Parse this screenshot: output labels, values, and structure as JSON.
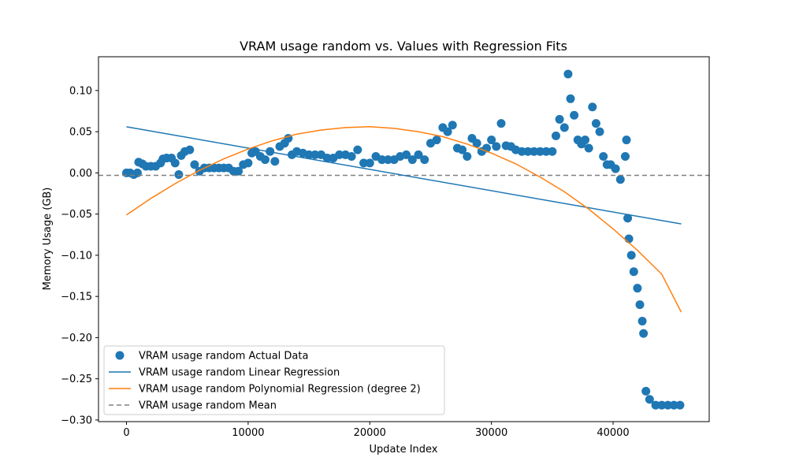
{
  "chart_data": {
    "type": "scatter",
    "title": "VRAM usage random vs. Values with Regression Fits",
    "xlabel": "Update Index",
    "ylabel": "Memory Usage (GB)",
    "xlim": [
      -2300,
      47900
    ],
    "ylim": [
      -0.302,
      0.141
    ],
    "xticks": [
      0,
      10000,
      20000,
      30000,
      40000
    ],
    "xtick_labels": [
      "0",
      "10000",
      "20000",
      "30000",
      "40000"
    ],
    "yticks": [
      0.1,
      0.05,
      0.0,
      -0.05,
      -0.1,
      -0.15,
      -0.2,
      -0.25,
      -0.3
    ],
    "ytick_labels": [
      "0.10",
      "0.05",
      "0.00",
      "−0.05",
      "−0.10",
      "−0.15",
      "−0.20",
      "−0.25",
      "−0.30"
    ],
    "grid": false,
    "legend_position": "lower-left",
    "colors": {
      "data": "#1f77b4",
      "linear": "#1f77b4",
      "poly": "#ff7f0e",
      "mean": "#808080"
    },
    "series": [
      {
        "name": "VRAM usage random Actual Data",
        "kind": "scatter",
        "points": [
          [
            0,
            0.0
          ],
          [
            300,
            0.0
          ],
          [
            600,
            -0.002
          ],
          [
            900,
            0.0
          ],
          [
            1000,
            0.013
          ],
          [
            1300,
            0.011
          ],
          [
            1600,
            0.008
          ],
          [
            2000,
            0.008
          ],
          [
            2400,
            0.008
          ],
          [
            2800,
            0.012
          ],
          [
            3000,
            0.017
          ],
          [
            3300,
            0.018
          ],
          [
            3700,
            0.018
          ],
          [
            4000,
            0.012
          ],
          [
            4300,
            -0.002
          ],
          [
            4500,
            0.021
          ],
          [
            4800,
            0.026
          ],
          [
            5200,
            0.028
          ],
          [
            5600,
            0.01
          ],
          [
            6000,
            0.002
          ],
          [
            6400,
            0.006
          ],
          [
            6800,
            0.006
          ],
          [
            7200,
            0.006
          ],
          [
            7600,
            0.006
          ],
          [
            8000,
            0.006
          ],
          [
            8400,
            0.006
          ],
          [
            8800,
            0.002
          ],
          [
            9200,
            0.002
          ],
          [
            9600,
            0.01
          ],
          [
            10000,
            0.012
          ],
          [
            10300,
            0.024
          ],
          [
            10600,
            0.026
          ],
          [
            11000,
            0.02
          ],
          [
            11400,
            0.016
          ],
          [
            11800,
            0.026
          ],
          [
            12200,
            0.014
          ],
          [
            12600,
            0.032
          ],
          [
            13000,
            0.036
          ],
          [
            13300,
            0.042
          ],
          [
            13600,
            0.022
          ],
          [
            14000,
            0.026
          ],
          [
            14500,
            0.024
          ],
          [
            15000,
            0.022
          ],
          [
            15500,
            0.022
          ],
          [
            16000,
            0.022
          ],
          [
            16500,
            0.018
          ],
          [
            17000,
            0.018
          ],
          [
            17500,
            0.022
          ],
          [
            18000,
            0.022
          ],
          [
            18500,
            0.02
          ],
          [
            19000,
            0.028
          ],
          [
            19500,
            0.012
          ],
          [
            20000,
            0.012
          ],
          [
            20500,
            0.02
          ],
          [
            21000,
            0.016
          ],
          [
            21500,
            0.016
          ],
          [
            22000,
            0.016
          ],
          [
            22500,
            0.02
          ],
          [
            23000,
            0.022
          ],
          [
            23500,
            0.016
          ],
          [
            24000,
            0.022
          ],
          [
            24500,
            0.016
          ],
          [
            25000,
            0.036
          ],
          [
            25500,
            0.04
          ],
          [
            26000,
            0.055
          ],
          [
            26400,
            0.05
          ],
          [
            26800,
            0.058
          ],
          [
            27200,
            0.03
          ],
          [
            27600,
            0.028
          ],
          [
            28000,
            0.02
          ],
          [
            28400,
            0.042
          ],
          [
            28800,
            0.036
          ],
          [
            29200,
            0.026
          ],
          [
            29600,
            0.03
          ],
          [
            30000,
            0.04
          ],
          [
            30400,
            0.032
          ],
          [
            30800,
            0.06
          ],
          [
            31200,
            0.033
          ],
          [
            31600,
            0.032
          ],
          [
            32000,
            0.028
          ],
          [
            32500,
            0.026
          ],
          [
            33000,
            0.026
          ],
          [
            33500,
            0.026
          ],
          [
            34000,
            0.026
          ],
          [
            34500,
            0.026
          ],
          [
            35000,
            0.026
          ],
          [
            35300,
            0.045
          ],
          [
            35600,
            0.065
          ],
          [
            36000,
            0.055
          ],
          [
            36300,
            0.12
          ],
          [
            36500,
            0.09
          ],
          [
            36800,
            0.07
          ],
          [
            37100,
            0.04
          ],
          [
            37400,
            0.035
          ],
          [
            37700,
            0.04
          ],
          [
            38000,
            0.03
          ],
          [
            38300,
            0.08
          ],
          [
            38600,
            0.06
          ],
          [
            38900,
            0.05
          ],
          [
            39200,
            0.02
          ],
          [
            39500,
            0.01
          ],
          [
            39800,
            0.01
          ],
          [
            40200,
            0.005
          ],
          [
            40600,
            -0.008
          ],
          [
            41000,
            0.02
          ],
          [
            41100,
            0.04
          ],
          [
            41200,
            -0.055
          ],
          [
            41300,
            -0.08
          ],
          [
            41500,
            -0.1
          ],
          [
            41700,
            -0.12
          ],
          [
            42000,
            -0.14
          ],
          [
            42200,
            -0.16
          ],
          [
            42400,
            -0.18
          ],
          [
            42500,
            -0.195
          ],
          [
            42700,
            -0.265
          ],
          [
            43000,
            -0.275
          ],
          [
            43500,
            -0.282
          ],
          [
            44000,
            -0.282
          ],
          [
            44500,
            -0.282
          ],
          [
            45000,
            -0.282
          ],
          [
            45500,
            -0.282
          ]
        ]
      },
      {
        "name": "VRAM usage random Linear Regression",
        "kind": "line",
        "x": [
          0,
          45600
        ],
        "y": [
          0.056,
          -0.062
        ]
      },
      {
        "name": "VRAM usage random Polynomial Regression (degree 2)",
        "kind": "line",
        "x": [
          0,
          2000,
          4000,
          6000,
          8000,
          10000,
          12000,
          14000,
          16000,
          18000,
          20000,
          22000,
          24000,
          26000,
          28000,
          30000,
          32000,
          34000,
          36000,
          38000,
          40000,
          42000,
          44000,
          45600
        ],
        "y": [
          -0.051,
          -0.031,
          -0.013,
          0.003,
          0.017,
          0.029,
          0.039,
          0.047,
          0.052,
          0.055,
          0.056,
          0.054,
          0.05,
          0.044,
          0.035,
          0.024,
          0.011,
          -0.005,
          -0.023,
          -0.044,
          -0.068,
          -0.094,
          -0.123,
          -0.169
        ]
      },
      {
        "name": "VRAM usage random Mean",
        "kind": "hline",
        "y": -0.003
      }
    ]
  }
}
